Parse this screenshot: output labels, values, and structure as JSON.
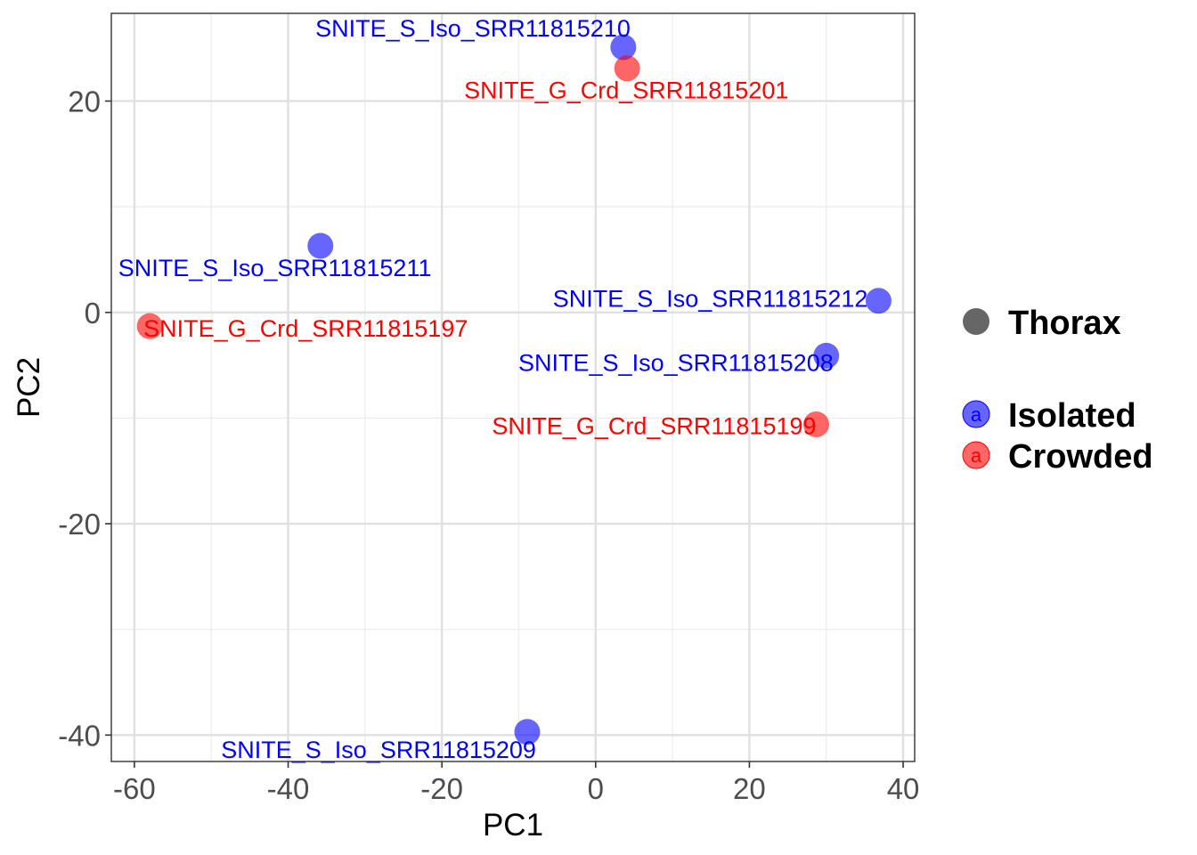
{
  "chart_data": {
    "type": "scatter",
    "xlabel": "PC1",
    "ylabel": "PC2",
    "xlim": [
      -63,
      41.5
    ],
    "ylim": [
      -42.5,
      28.3
    ],
    "x_major_ticks": [
      -60,
      -40,
      -20,
      0,
      20,
      40
    ],
    "x_tick_labels": [
      "-60",
      "-40",
      "-20",
      "0",
      "20",
      "40"
    ],
    "x_minor_ticks": [
      -50,
      -30,
      -10,
      10,
      30
    ],
    "y_major_ticks": [
      -40,
      -20,
      0,
      20
    ],
    "y_tick_labels": [
      "-40",
      "-20",
      "0",
      "20"
    ],
    "y_minor_ticks": [
      -30,
      -10,
      10
    ],
    "grid": true,
    "colors": {
      "Isolated": "#0000ff",
      "Crowded": "#ff0000"
    },
    "points": [
      {
        "label": "SNITE_S_Iso_SRR11815210",
        "group": "Isolated",
        "x": 3.6,
        "y": 25.1
      },
      {
        "label": "SNITE_G_Crd_SRR11815201",
        "group": "Crowded",
        "x": 4.1,
        "y": 23.1
      },
      {
        "label": "SNITE_S_Iso_SRR11815211",
        "group": "Isolated",
        "x": -35.8,
        "y": 6.3
      },
      {
        "label": "SNITE_G_Crd_SRR11815197",
        "group": "Crowded",
        "x": -58.0,
        "y": -1.3
      },
      {
        "label": "SNITE_S_Iso_SRR11815212",
        "group": "Isolated",
        "x": 36.8,
        "y": 1.1
      },
      {
        "label": "SNITE_S_Iso_SRR11815208",
        "group": "Isolated",
        "x": 30.0,
        "y": -4.1
      },
      {
        "label": "SNITE_G_Crd_SRR11815199",
        "group": "Crowded",
        "x": 28.7,
        "y": -10.6
      },
      {
        "label": "SNITE_S_Iso_SRR11815209",
        "group": "Isolated",
        "x": -8.9,
        "y": -39.7
      }
    ],
    "legend": {
      "placement": "right",
      "shape": {
        "label": "Thorax",
        "color": "#666666"
      },
      "color_key_letter": "a",
      "color": [
        {
          "label": "Isolated",
          "color": "#0000ff"
        },
        {
          "label": "Crowded",
          "color": "#ff0000"
        }
      ]
    }
  }
}
